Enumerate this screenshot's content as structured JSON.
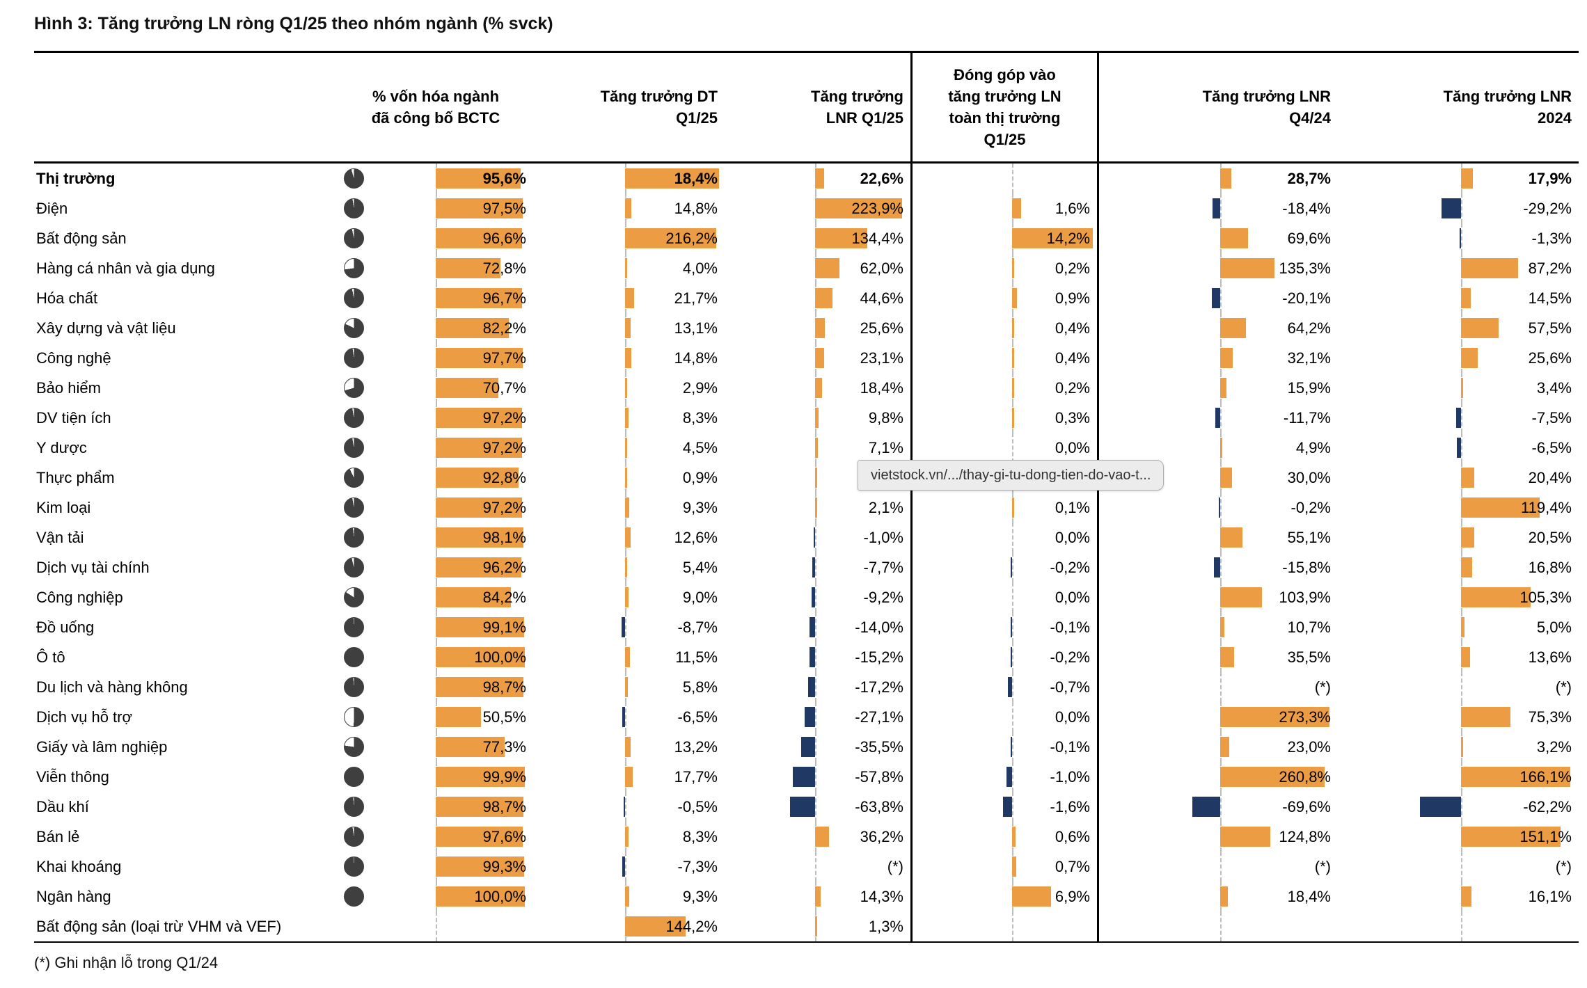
{
  "title": "Hình 3: Tăng trưởng LN ròng Q1/25 theo nhóm ngành (% svck)",
  "footnote": "(*) Ghi nhận lỗ trong Q1/24",
  "tooltip": {
    "text": "vietstock.vn/.../thay-gi-tu-dong-tien-do-vao-t..."
  },
  "colors": {
    "bar_positive": "#EC9C43",
    "bar_negative": "#1F3864",
    "pie_fill": "#3F3F3F",
    "tooltip_bg": "#ECECEC"
  },
  "headers": {
    "market_cap": [
      "% vốn hóa ngành",
      "đã công bố BCTC"
    ],
    "revenue_growth": [
      "Tăng trưởng DT",
      "Q1/25"
    ],
    "npat_growth_q1": [
      "Tăng trưởng",
      "LNR Q1/25"
    ],
    "contribution": [
      "Đóng góp vào",
      "tăng trưởng LN",
      "toàn thị trường",
      "Q1/25"
    ],
    "npat_growth_q4": [
      "Tăng trưởng LNR",
      "Q4/24"
    ],
    "npat_growth_2024": [
      "Tăng trưởng LNR",
      "2024"
    ]
  },
  "chart_data": {
    "type": "table",
    "title": "Hình 3: Tăng trưởng LN ròng Q1/25 theo nhóm ngành (% svck)",
    "columns": [
      "% vốn hóa ngành đã công bố BCTC",
      "Tăng trưởng DT Q1/25",
      "Tăng trưởng LNR Q1/25",
      "Đóng góp vào tăng trưởng LN toàn thị trường Q1/25",
      "Tăng trưởng LNR Q4/24",
      "Tăng trưởng LNR 2024"
    ],
    "rows": [
      {
        "name": "Thị trường",
        "bold": true,
        "coverage": 0.956,
        "cells": [
          {
            "v": 95.6,
            "t": "95,6%"
          },
          {
            "v": 18.4,
            "t": "18,4%",
            "hl": true
          },
          {
            "v": 22.6,
            "t": "22,6%"
          },
          null,
          {
            "v": 28.7,
            "t": "28,7%"
          },
          {
            "v": 17.9,
            "t": "17,9%"
          }
        ]
      },
      {
        "name": "Điện",
        "coverage": 0.975,
        "cells": [
          {
            "v": 97.5,
            "t": "97,5%"
          },
          {
            "v": 14.8,
            "t": "14,8%"
          },
          {
            "v": 223.9,
            "t": "223,9%"
          },
          {
            "v": 1.6,
            "t": "1,6%"
          },
          {
            "v": -18.4,
            "t": "-18,4%"
          },
          {
            "v": -29.2,
            "t": "-29,2%"
          }
        ]
      },
      {
        "name": "Bất động sản",
        "coverage": 0.966,
        "cells": [
          {
            "v": 96.6,
            "t": "96,6%"
          },
          {
            "v": 216.2,
            "t": "216,2%"
          },
          {
            "v": 134.4,
            "t": "134,4%"
          },
          {
            "v": 14.2,
            "t": "14,2%"
          },
          {
            "v": 69.6,
            "t": "69,6%"
          },
          {
            "v": -1.3,
            "t": "-1,3%"
          }
        ]
      },
      {
        "name": "Hàng cá nhân và gia dụng",
        "coverage": 0.728,
        "cells": [
          {
            "v": 72.8,
            "t": "72,8%"
          },
          {
            "v": 4.0,
            "t": "4,0%"
          },
          {
            "v": 62.0,
            "t": "62,0%"
          },
          {
            "v": 0.2,
            "t": "0,2%"
          },
          {
            "v": 135.3,
            "t": "135,3%"
          },
          {
            "v": 87.2,
            "t": "87,2%"
          }
        ]
      },
      {
        "name": "Hóa chất",
        "coverage": 0.967,
        "cells": [
          {
            "v": 96.7,
            "t": "96,7%"
          },
          {
            "v": 21.7,
            "t": "21,7%"
          },
          {
            "v": 44.6,
            "t": "44,6%"
          },
          {
            "v": 0.9,
            "t": "0,9%"
          },
          {
            "v": -20.1,
            "t": "-20,1%"
          },
          {
            "v": 14.5,
            "t": "14,5%"
          }
        ]
      },
      {
        "name": "Xây dựng và vật liệu",
        "coverage": 0.822,
        "cells": [
          {
            "v": 82.2,
            "t": "82,2%"
          },
          {
            "v": 13.1,
            "t": "13,1%"
          },
          {
            "v": 25.6,
            "t": "25,6%"
          },
          {
            "v": 0.4,
            "t": "0,4%"
          },
          {
            "v": 64.2,
            "t": "64,2%"
          },
          {
            "v": 57.5,
            "t": "57,5%"
          }
        ]
      },
      {
        "name": "Công nghệ",
        "coverage": 0.977,
        "cells": [
          {
            "v": 97.7,
            "t": "97,7%"
          },
          {
            "v": 14.8,
            "t": "14,8%"
          },
          {
            "v": 23.1,
            "t": "23,1%"
          },
          {
            "v": 0.4,
            "t": "0,4%"
          },
          {
            "v": 32.1,
            "t": "32,1%"
          },
          {
            "v": 25.6,
            "t": "25,6%"
          }
        ]
      },
      {
        "name": "Bảo hiểm",
        "coverage": 0.707,
        "cells": [
          {
            "v": 70.7,
            "t": "70,7%"
          },
          {
            "v": 2.9,
            "t": "2,9%"
          },
          {
            "v": 18.4,
            "t": "18,4%"
          },
          {
            "v": 0.2,
            "t": "0,2%"
          },
          {
            "v": 15.9,
            "t": "15,9%"
          },
          {
            "v": 3.4,
            "t": "3,4%"
          }
        ]
      },
      {
        "name": "DV tiện ích",
        "coverage": 0.972,
        "cells": [
          {
            "v": 97.2,
            "t": "97,2%"
          },
          {
            "v": 8.3,
            "t": "8,3%"
          },
          {
            "v": 9.8,
            "t": "9,8%"
          },
          {
            "v": 0.3,
            "t": "0,3%"
          },
          {
            "v": -11.7,
            "t": "-11,7%"
          },
          {
            "v": -7.5,
            "t": "-7,5%"
          }
        ]
      },
      {
        "name": "Y dược",
        "coverage": 0.972,
        "cells": [
          {
            "v": 97.2,
            "t": "97,2%"
          },
          {
            "v": 4.5,
            "t": "4,5%"
          },
          {
            "v": 7.1,
            "t": "7,1%"
          },
          {
            "v": 0.0,
            "t": "0,0%"
          },
          {
            "v": 4.9,
            "t": "4,9%"
          },
          {
            "v": -6.5,
            "t": "-6,5%"
          }
        ]
      },
      {
        "name": "Thực phẩm",
        "coverage": 0.928,
        "cells": [
          {
            "v": 92.8,
            "t": "92,8%"
          },
          {
            "v": 0.9,
            "t": "0,9%"
          },
          {
            "v": 4.0,
            "t": ""
          },
          {
            "v": 0.2,
            "t": ""
          },
          {
            "v": 30.0,
            "t": "30,0%"
          },
          {
            "v": 20.4,
            "t": "20,4%"
          }
        ]
      },
      {
        "name": "Kim loại",
        "coverage": 0.972,
        "cells": [
          {
            "v": 97.2,
            "t": "97,2%"
          },
          {
            "v": 9.3,
            "t": "9,3%"
          },
          {
            "v": 2.1,
            "t": "2,1%"
          },
          {
            "v": 0.1,
            "t": "0,1%"
          },
          {
            "v": -0.2,
            "t": "-0,2%"
          },
          {
            "v": 119.4,
            "t": "119,4%"
          }
        ]
      },
      {
        "name": "Vận tải",
        "coverage": 0.981,
        "cells": [
          {
            "v": 98.1,
            "t": "98,1%"
          },
          {
            "v": 12.6,
            "t": "12,6%"
          },
          {
            "v": -1.0,
            "t": "-1,0%"
          },
          {
            "v": 0.0,
            "t": "0,0%"
          },
          {
            "v": 55.1,
            "t": "55,1%"
          },
          {
            "v": 20.5,
            "t": "20,5%"
          }
        ]
      },
      {
        "name": "Dịch vụ tài chính",
        "coverage": 0.962,
        "cells": [
          {
            "v": 96.2,
            "t": "96,2%"
          },
          {
            "v": 5.4,
            "t": "5,4%"
          },
          {
            "v": -7.7,
            "t": "-7,7%"
          },
          {
            "v": -0.2,
            "t": "-0,2%"
          },
          {
            "v": -15.8,
            "t": "-15,8%"
          },
          {
            "v": 16.8,
            "t": "16,8%"
          }
        ]
      },
      {
        "name": "Công nghiệp",
        "coverage": 0.842,
        "cells": [
          {
            "v": 84.2,
            "t": "84,2%"
          },
          {
            "v": 9.0,
            "t": "9,0%"
          },
          {
            "v": -9.2,
            "t": "-9,2%"
          },
          {
            "v": 0.0,
            "t": "0,0%"
          },
          {
            "v": 103.9,
            "t": "103,9%"
          },
          {
            "v": 105.3,
            "t": "105,3%"
          }
        ]
      },
      {
        "name": "Đồ uống",
        "coverage": 0.991,
        "cells": [
          {
            "v": 99.1,
            "t": "99,1%"
          },
          {
            "v": -8.7,
            "t": "-8,7%"
          },
          {
            "v": -14.0,
            "t": "-14,0%"
          },
          {
            "v": -0.1,
            "t": "-0,1%"
          },
          {
            "v": 10.7,
            "t": "10,7%"
          },
          {
            "v": 5.0,
            "t": "5,0%"
          }
        ]
      },
      {
        "name": "Ô tô",
        "coverage": 1.0,
        "cells": [
          {
            "v": 100.0,
            "t": "100,0%"
          },
          {
            "v": 11.5,
            "t": "11,5%"
          },
          {
            "v": -15.2,
            "t": "-15,2%"
          },
          {
            "v": -0.2,
            "t": "-0,2%"
          },
          {
            "v": 35.5,
            "t": "35,5%"
          },
          {
            "v": 13.6,
            "t": "13,6%"
          }
        ]
      },
      {
        "name": "Du lịch và hàng không",
        "coverage": 0.987,
        "cells": [
          {
            "v": 98.7,
            "t": "98,7%"
          },
          {
            "v": 5.8,
            "t": "5,8%"
          },
          {
            "v": -17.2,
            "t": "-17,2%"
          },
          {
            "v": -0.7,
            "t": "-0,7%"
          },
          {
            "v": null,
            "t": "(*)"
          },
          {
            "v": null,
            "t": "(*)"
          }
        ]
      },
      {
        "name": "Dịch vụ hỗ trợ",
        "coverage": 0.505,
        "cells": [
          {
            "v": 50.5,
            "t": "50,5%"
          },
          {
            "v": -6.5,
            "t": "-6,5%"
          },
          {
            "v": -27.1,
            "t": "-27,1%"
          },
          {
            "v": 0.0,
            "t": "0,0%"
          },
          {
            "v": 273.3,
            "t": "273,3%"
          },
          {
            "v": 75.3,
            "t": "75,3%"
          }
        ]
      },
      {
        "name": "Giấy và lâm nghiệp",
        "coverage": 0.773,
        "cells": [
          {
            "v": 77.3,
            "t": "77,3%"
          },
          {
            "v": 13.2,
            "t": "13,2%"
          },
          {
            "v": -35.5,
            "t": "-35,5%"
          },
          {
            "v": -0.1,
            "t": "-0,1%"
          },
          {
            "v": 23.0,
            "t": "23,0%"
          },
          {
            "v": 3.2,
            "t": "3,2%"
          }
        ]
      },
      {
        "name": "Viễn thông",
        "coverage": 0.999,
        "cells": [
          {
            "v": 99.9,
            "t": "99,9%"
          },
          {
            "v": 17.7,
            "t": "17,7%"
          },
          {
            "v": -57.8,
            "t": "-57,8%"
          },
          {
            "v": -1.0,
            "t": "-1,0%"
          },
          {
            "v": 260.8,
            "t": "260,8%"
          },
          {
            "v": 166.1,
            "t": "166,1%"
          }
        ]
      },
      {
        "name": "Dầu khí",
        "coverage": 0.987,
        "cells": [
          {
            "v": 98.7,
            "t": "98,7%"
          },
          {
            "v": -0.5,
            "t": "-0,5%"
          },
          {
            "v": -63.8,
            "t": "-63,8%"
          },
          {
            "v": -1.6,
            "t": "-1,6%"
          },
          {
            "v": -69.6,
            "t": "-69,6%"
          },
          {
            "v": -62.2,
            "t": "-62,2%"
          }
        ]
      },
      {
        "name": "Bán lẻ",
        "coverage": 0.976,
        "cells": [
          {
            "v": 97.6,
            "t": "97,6%"
          },
          {
            "v": 8.3,
            "t": "8,3%"
          },
          {
            "v": 36.2,
            "t": "36,2%"
          },
          {
            "v": 0.6,
            "t": "0,6%"
          },
          {
            "v": 124.8,
            "t": "124,8%"
          },
          {
            "v": 151.1,
            "t": "151,1%"
          }
        ]
      },
      {
        "name": "Khai khoáng",
        "coverage": 0.993,
        "cells": [
          {
            "v": 99.3,
            "t": "99,3%"
          },
          {
            "v": -7.3,
            "t": "-7,3%"
          },
          {
            "v": null,
            "t": "(*)"
          },
          {
            "v": 0.7,
            "t": "0,7%"
          },
          {
            "v": null,
            "t": "(*)"
          },
          {
            "v": null,
            "t": "(*)"
          }
        ]
      },
      {
        "name": "Ngân hàng",
        "coverage": 1.0,
        "cells": [
          {
            "v": 100.0,
            "t": "100,0%"
          },
          {
            "v": 9.3,
            "t": "9,3%"
          },
          {
            "v": 14.3,
            "t": "14,3%"
          },
          {
            "v": 6.9,
            "t": "6,9%"
          },
          {
            "v": 18.4,
            "t": "18,4%"
          },
          {
            "v": 16.1,
            "t": "16,1%"
          }
        ]
      },
      {
        "name": "Bất động sản (loại trừ VHM và VEF)",
        "coverage": null,
        "cells": [
          null,
          {
            "v": 144.2,
            "t": "144,2%"
          },
          {
            "v": 1.3,
            "t": "1,3%"
          },
          null,
          null,
          null
        ]
      }
    ]
  }
}
